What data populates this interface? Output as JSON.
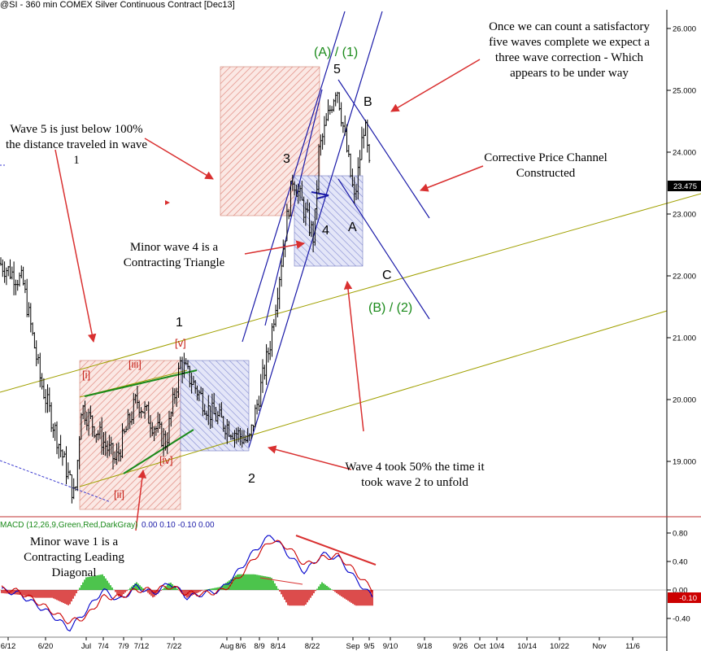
{
  "header": {
    "title": "@SI - 360 min  COMEX  Silver Continuous Contract [Dec13]"
  },
  "colors": {
    "up_bar": "#000000",
    "annotation_arrow": "#d93030",
    "channel_blue": "#1a1aa8",
    "channel_olive": "#a0a000",
    "macd_line": "#0000cc",
    "signal_line": "#cc0000",
    "hist_pos": "#00aa00",
    "hist_neg": "#cc0000",
    "wave_green": "#1a8a1a"
  },
  "annotations": {
    "five_waves": "Once we can count a satisfactory five waves complete we expect a three wave correction - Which appears to be under way",
    "wave5": "Wave 5 is just below 100% the distance traveled in wave 1",
    "corrective": "Corrective Price Channel Constructed",
    "minor4": "Minor wave 4 is a Contracting Triangle",
    "minor1": "Minor wave 1 is a Contracting Leading Diagonal",
    "wave4took": "Wave 4 took 50% the time it took wave 2 to unfold"
  },
  "chart_data": [
    {
      "type": "bar",
      "subtype": "ohlc",
      "title": "@SI - 360 min  COMEX  Silver Continuous Contract [Dec13]",
      "ylim": [
        18.2,
        26.5
      ],
      "y_ticks": [
        "26.000",
        "25.000",
        "24.000",
        "23.000",
        "22.000",
        "21.000",
        "20.000",
        "19.000"
      ],
      "last_price": "23.475",
      "x_ticks": [
        "6/12",
        "6/20",
        "Jul",
        "7/4",
        "7/9",
        "7/12",
        "7/22",
        "Aug",
        "8/6",
        "8/9",
        "8/14",
        "8/22",
        "Sep",
        "9/5",
        "9/10",
        "9/18",
        "9/26",
        "Oct",
        "10/4",
        "10/14",
        "10/22",
        "Nov",
        "11/6"
      ],
      "close_path": [
        {
          "x": "6/12",
          "y": 22.2
        },
        {
          "x": "6/20",
          "y": 21.9
        },
        {
          "x": "6/20",
          "y": 20.3
        },
        {
          "x": "Jul",
          "y": 18.4
        },
        {
          "x": "Jul",
          "y": 19.9
        },
        {
          "x": "7/4",
          "y": 19.0
        },
        {
          "x": "7/9",
          "y": 20.0
        },
        {
          "x": "7/12",
          "y": 19.3
        },
        {
          "x": "7/22",
          "y": 20.6
        },
        {
          "x": "Aug",
          "y": 19.8
        },
        {
          "x": "8/6",
          "y": 19.3
        },
        {
          "x": "8/9",
          "y": 20.9
        },
        {
          "x": "8/14",
          "y": 23.6
        },
        {
          "x": "8/22",
          "y": 22.6
        },
        {
          "x": "8/22",
          "y": 24.0
        },
        {
          "x": "Sep",
          "y": 25.1
        },
        {
          "x": "Sep",
          "y": 23.2
        },
        {
          "x": "9/5",
          "y": 24.5
        },
        {
          "x": "9/5",
          "y": 23.475
        }
      ],
      "wave_labels": [
        {
          "text": "1",
          "color": "black"
        },
        {
          "text": "2",
          "color": "black"
        },
        {
          "text": "3",
          "color": "black"
        },
        {
          "text": "4",
          "color": "black"
        },
        {
          "text": "5",
          "color": "black"
        },
        {
          "text": "A",
          "color": "black"
        },
        {
          "text": "B",
          "color": "black"
        },
        {
          "text": "C",
          "color": "black"
        },
        {
          "text": "(A) / (1)",
          "color": "green"
        },
        {
          "text": "(B) / (2)",
          "color": "green"
        },
        {
          "text": "[i]",
          "color": "red"
        },
        {
          "text": "[ii]",
          "color": "red"
        },
        {
          "text": "[iii]",
          "color": "red"
        },
        {
          "text": "[iv]",
          "color": "red"
        },
        {
          "text": "[v]",
          "color": "red"
        }
      ]
    },
    {
      "type": "line",
      "title": "MACD (12,26,9,Green,Red,DarkGray)",
      "params": "0.00  0.10  -0.10  0.00",
      "ylim": [
        -0.45,
        0.95
      ],
      "y_ticks": [
        "0.80",
        "0.40",
        "0.00",
        "-0.40"
      ],
      "last_value": "-0.10",
      "series": [
        {
          "name": "MACD",
          "values": [
            0.0,
            -0.05,
            -0.2,
            -0.35,
            -0.55,
            -0.3,
            0.0,
            -0.15,
            0.05,
            -0.05,
            0.1,
            -0.1,
            -0.05,
            0.0,
            0.25,
            0.55,
            0.78,
            0.5,
            0.25,
            0.5,
            0.45,
            0.15,
            -0.1
          ]
        },
        {
          "name": "Signal",
          "values": [
            0.02,
            -0.02,
            -0.15,
            -0.3,
            -0.45,
            -0.38,
            -0.1,
            -0.1,
            0.0,
            0.0,
            0.05,
            -0.05,
            -0.05,
            -0.02,
            0.15,
            0.45,
            0.7,
            0.6,
            0.35,
            0.45,
            0.48,
            0.25,
            0.0
          ]
        }
      ]
    }
  ]
}
